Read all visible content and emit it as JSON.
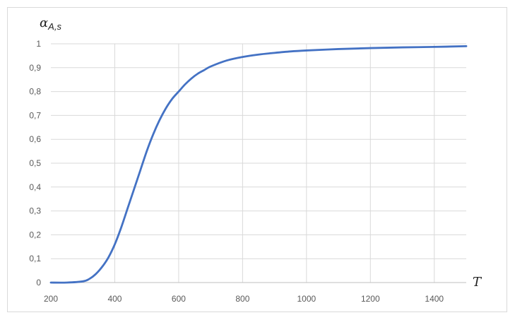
{
  "chart_data": {
    "type": "line",
    "title": "",
    "xlabel": "T",
    "ylabel": {
      "symbol": "α",
      "subscript": "A,s"
    },
    "xlim": [
      200,
      1500
    ],
    "ylim": [
      0,
      1
    ],
    "x_ticks": [
      200,
      400,
      600,
      800,
      1000,
      1200,
      1400
    ],
    "x_tick_labels": [
      "200",
      "400",
      "600",
      "800",
      "1000",
      "1200",
      "1400"
    ],
    "y_ticks": [
      0,
      0.1,
      0.2,
      0.3,
      0.4,
      0.5,
      0.6,
      0.7,
      0.8,
      0.9,
      1
    ],
    "y_tick_labels": [
      "0",
      "0,1",
      "0,2",
      "0,3",
      "0,4",
      "0,5",
      "0,6",
      "0,7",
      "0,8",
      "0,9",
      "1"
    ],
    "grid": true,
    "legend": "none",
    "series": [
      {
        "color": "#4472c4",
        "x": [
          200,
          250,
          300,
          320,
          340,
          360,
          380,
          400,
          420,
          440,
          460,
          480,
          500,
          520,
          540,
          560,
          580,
          600,
          620,
          640,
          660,
          680,
          700,
          750,
          800,
          850,
          900,
          950,
          1000,
          1100,
          1200,
          1300,
          1400,
          1500
        ],
        "y": [
          0.0,
          0.0,
          0.005,
          0.015,
          0.035,
          0.065,
          0.105,
          0.16,
          0.23,
          0.31,
          0.39,
          0.47,
          0.55,
          0.62,
          0.68,
          0.73,
          0.77,
          0.8,
          0.83,
          0.855,
          0.875,
          0.89,
          0.905,
          0.93,
          0.945,
          0.955,
          0.962,
          0.968,
          0.972,
          0.978,
          0.982,
          0.985,
          0.987,
          0.99
        ]
      }
    ]
  }
}
